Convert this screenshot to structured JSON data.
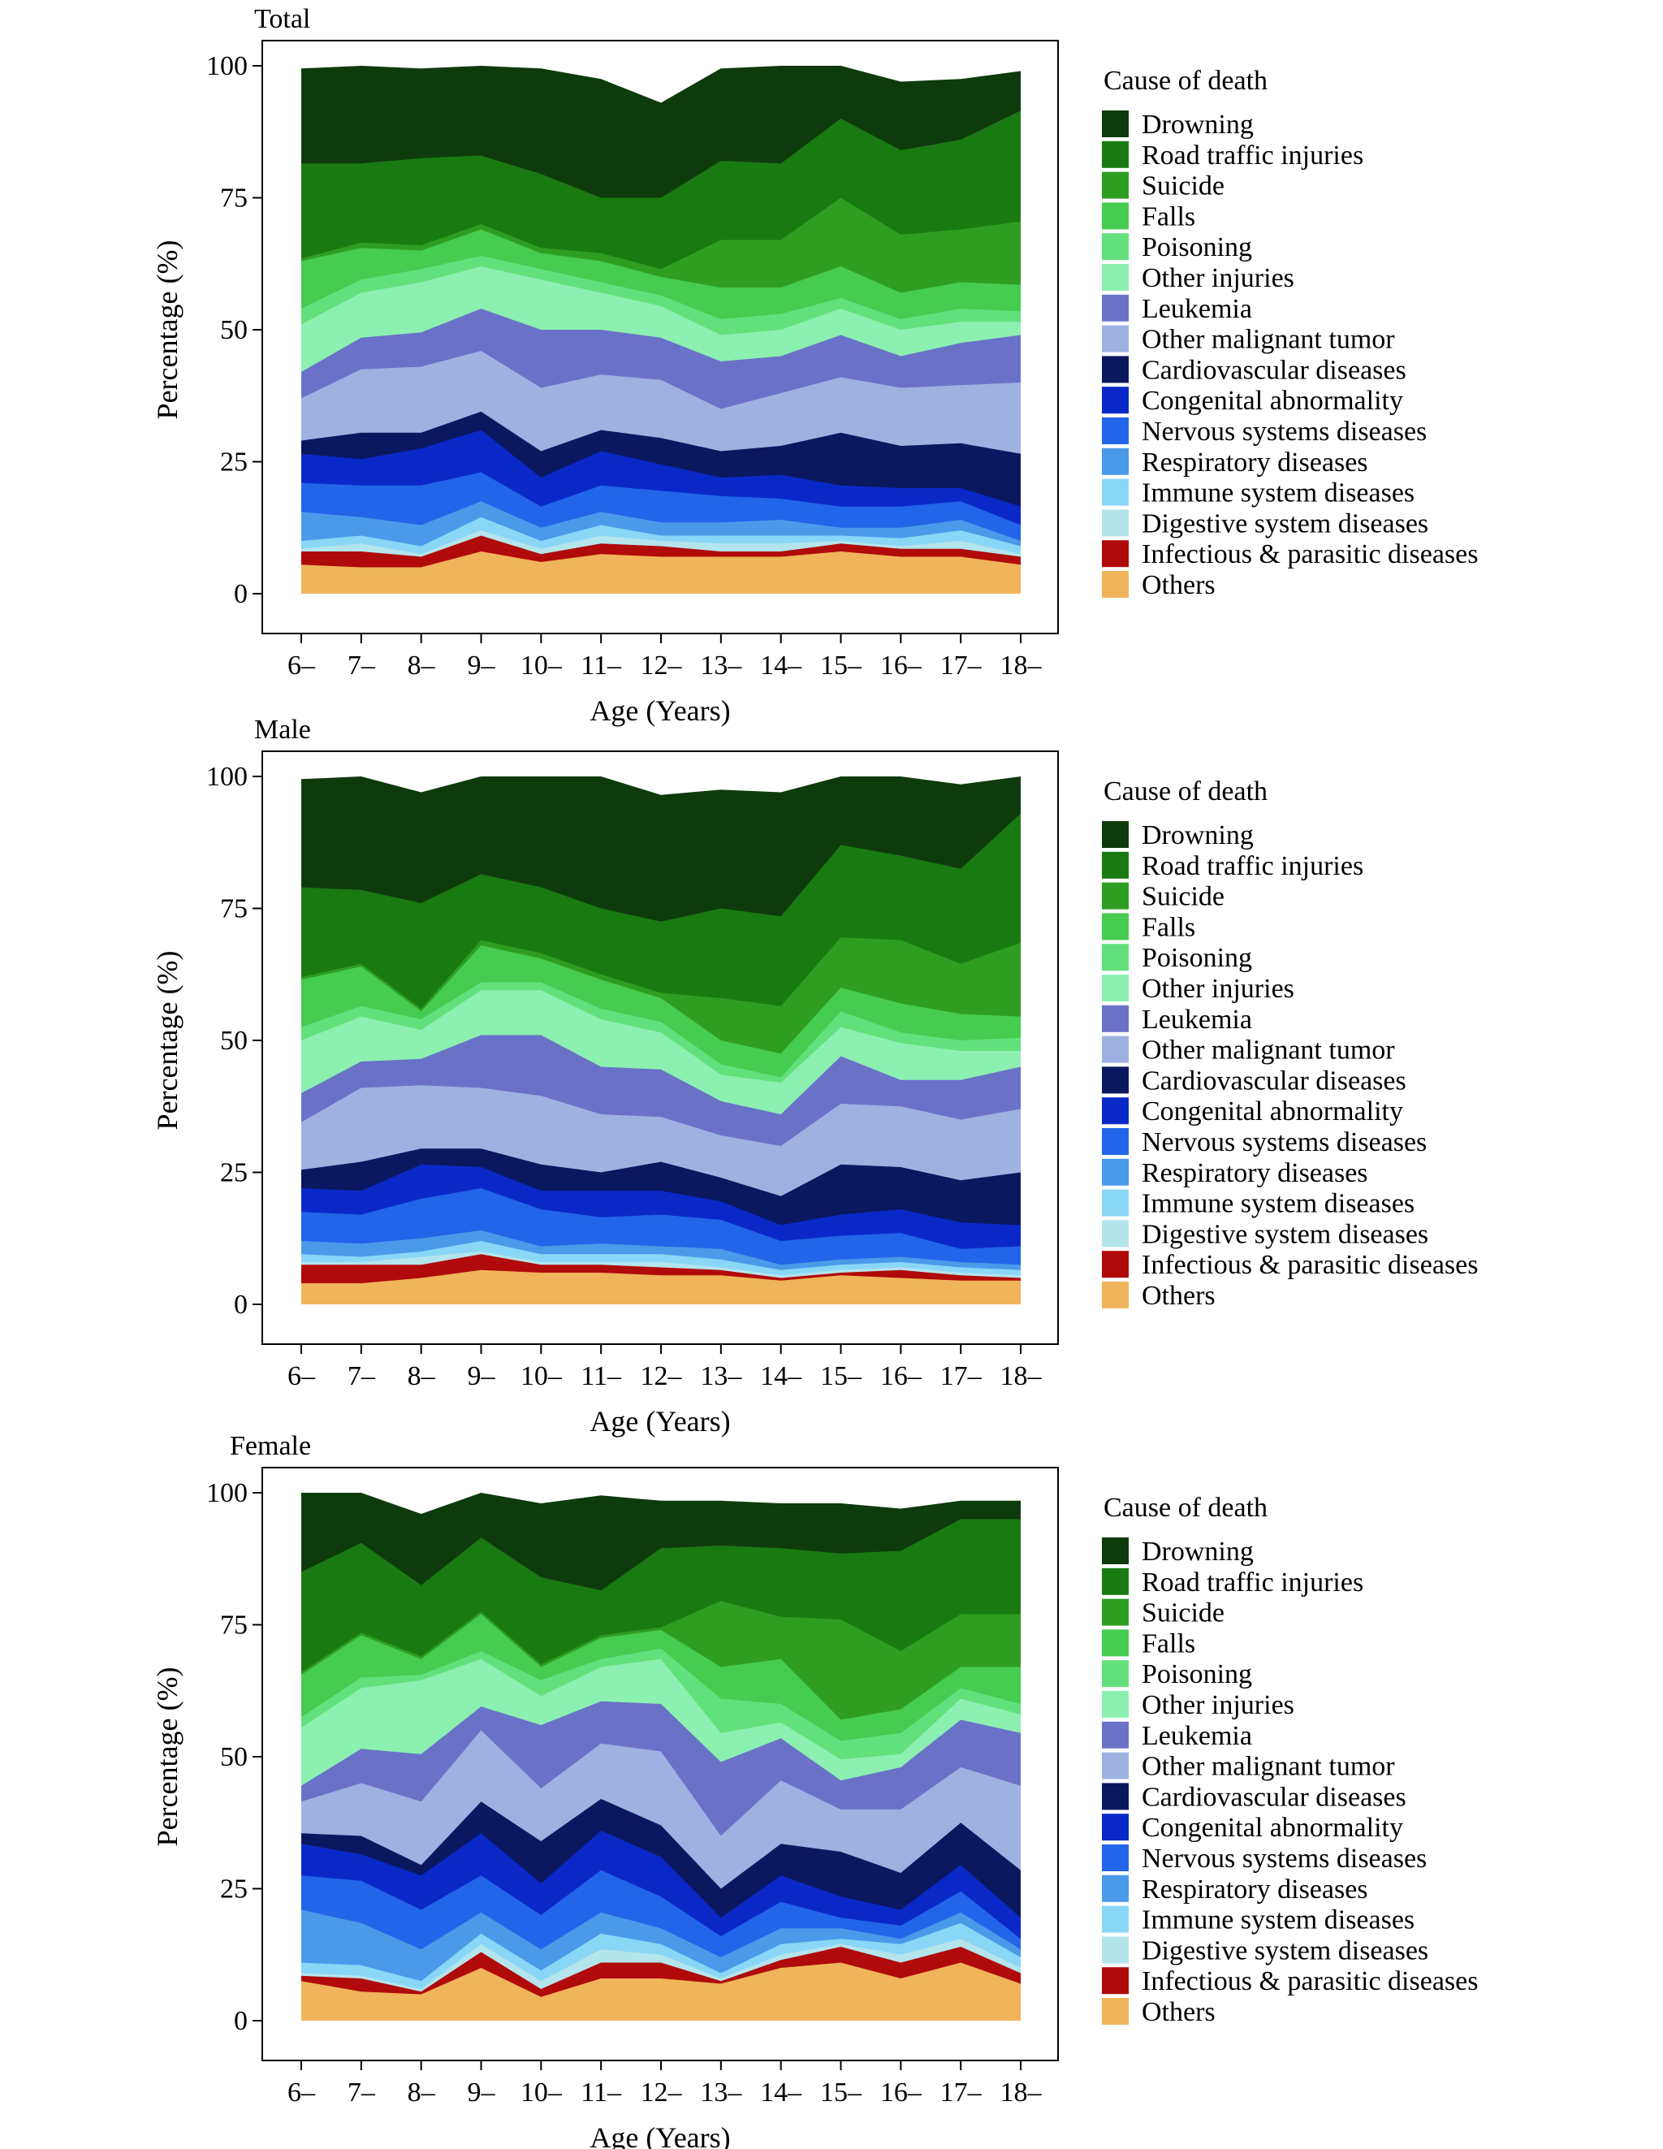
{
  "chart_data": {
    "type": "area",
    "stacked": true,
    "legend_title": "Cause of death",
    "legend_placement": "right",
    "ylabel": "Percentage (%)",
    "xlabel": "Age (Years)",
    "ylim": [
      0,
      100
    ],
    "yticks": [
      0,
      25,
      50,
      75,
      100
    ],
    "categories": [
      "6–",
      "7–",
      "8–",
      "9–",
      "10–",
      "11–",
      "12–",
      "13–",
      "14–",
      "15–",
      "16–",
      "17–",
      "18–"
    ],
    "causes": [
      {
        "name": "Drowning",
        "color": "#0e3b0c"
      },
      {
        "name": "Road traffic injuries",
        "color": "#1a7a12"
      },
      {
        "name": "Suicide",
        "color": "#2e9e22"
      },
      {
        "name": "Falls",
        "color": "#46cc50"
      },
      {
        "name": "Poisoning",
        "color": "#62e07c"
      },
      {
        "name": "Other injuries",
        "color": "#8cf0b0"
      },
      {
        "name": "Leukemia",
        "color": "#6a72c8"
      },
      {
        "name": "Other malignant tumor",
        "color": "#9eb2e2"
      },
      {
        "name": "Cardiovascular diseases",
        "color": "#0a1860"
      },
      {
        "name": "Congenital abnormality",
        "color": "#0a28c8"
      },
      {
        "name": "Nervous systems diseases",
        "color": "#2265e8"
      },
      {
        "name": "Respiratory diseases",
        "color": "#4a9aea"
      },
      {
        "name": "Immune system diseases",
        "color": "#8ad6f6"
      },
      {
        "name": "Digestive system diseases",
        "color": "#b4e4ec"
      },
      {
        "name": "Infectious & parasitic diseases",
        "color": "#b00a0a"
      },
      {
        "name": "Others",
        "color": "#f0b45a"
      }
    ],
    "panels": [
      {
        "title": "Total",
        "series": [
          {
            "name": "Drowning",
            "values": [
              18,
              20,
              17,
              19,
              20,
              22.5,
              18,
              17.5,
              18.5,
              13,
              13,
              11.5,
              7.5
            ]
          },
          {
            "name": "Road traffic injuries",
            "values": [
              18,
              15,
              16.5,
              13,
              14,
              10.5,
              13.5,
              15,
              14.5,
              15,
              16,
              17,
              21
            ]
          },
          {
            "name": "Suicide",
            "values": [
              0.5,
              1,
              1,
              1,
              1,
              1.5,
              1.5,
              9,
              9,
              13,
              11,
              10,
              12
            ]
          },
          {
            "name": "Falls",
            "values": [
              9,
              6,
              3.5,
              5,
              3,
              4,
              3.5,
              6,
              5,
              6,
              5,
              5,
              5
            ]
          },
          {
            "name": "Poisoning",
            "values": [
              3,
              2.5,
              2.5,
              2,
              2,
              2,
              2,
              3,
              3,
              2,
              2,
              2.5,
              2
            ]
          },
          {
            "name": "Other injuries",
            "values": [
              9,
              8.5,
              9.5,
              8,
              9.5,
              7,
              6,
              5,
              5,
              5,
              5,
              4,
              2.5
            ]
          },
          {
            "name": "Leukemia",
            "values": [
              5,
              6,
              6.5,
              8,
              11,
              8.5,
              8,
              9,
              7,
              8,
              6,
              8,
              9
            ]
          },
          {
            "name": "Other malignant tumor",
            "values": [
              8,
              12,
              12.5,
              11.5,
              12,
              10.5,
              11,
              8,
              10,
              10.5,
              11,
              11,
              13.5
            ]
          },
          {
            "name": "Cardiovascular diseases",
            "values": [
              2.5,
              5,
              3,
              3.5,
              5,
              4,
              5,
              5,
              5.5,
              10,
              8,
              8.5,
              10
            ]
          },
          {
            "name": "Congenital abnormality",
            "values": [
              5.5,
              5,
              7,
              8,
              5.5,
              6.5,
              5,
              3.5,
              4.5,
              4,
              3.5,
              2.5,
              3.5
            ]
          },
          {
            "name": "Nervous systems diseases",
            "values": [
              5.5,
              6,
              7.5,
              5.5,
              4,
              5,
              6,
              5,
              4,
              4,
              4,
              3.5,
              3
            ]
          },
          {
            "name": "Respiratory diseases",
            "values": [
              5.5,
              3.5,
              4,
              3,
              2.5,
              2.5,
              2.5,
              2.5,
              3,
              1.5,
              2,
              2,
              1
            ]
          },
          {
            "name": "Immune system diseases",
            "values": [
              1.5,
              1.5,
              1.5,
              2.5,
              1.5,
              2,
              1,
              1.5,
              1.5,
              1,
              1.5,
              2,
              1.5
            ]
          },
          {
            "name": "Digestive system diseases",
            "values": [
              0.5,
              1.5,
              0.5,
              1,
              1,
              1.5,
              1,
              1.5,
              1.5,
              0.5,
              0.5,
              1.5,
              0.5
            ]
          },
          {
            "name": "Infectious & parasitic diseases",
            "values": [
              2.5,
              3,
              2,
              3,
              1.5,
              2,
              2,
              1,
              1,
              1.5,
              1.5,
              1.5,
              1.5
            ]
          },
          {
            "name": "Others",
            "values": [
              5.5,
              5,
              5,
              8,
              6,
              7.5,
              7,
              7,
              7,
              8,
              7,
              7,
              5.5
            ]
          }
        ]
      },
      {
        "title": "Male",
        "series": [
          {
            "name": "Drowning",
            "values": [
              20.5,
              24,
              21,
              24,
              25,
              26.5,
              24,
              22.5,
              23.5,
              15,
              16,
              16,
              10.5
            ]
          },
          {
            "name": "Road traffic injuries",
            "values": [
              17,
              14,
              20,
              12.5,
              12.5,
              12.5,
              13.5,
              17,
              17,
              17.5,
              16,
              18,
              24.5
            ]
          },
          {
            "name": "Suicide",
            "values": [
              0.5,
              0.5,
              0.5,
              1,
              1,
              1,
              1,
              8,
              9,
              9.5,
              12,
              9.5,
              14
            ]
          },
          {
            "name": "Falls",
            "values": [
              9,
              7.5,
              1.5,
              7,
              4.5,
              5.5,
              4.5,
              4.5,
              4.5,
              4.5,
              5.5,
              5,
              4
            ]
          },
          {
            "name": "Poisoning",
            "values": [
              2.5,
              2,
              2,
              1.5,
              1.5,
              2,
              2,
              2,
              1,
              3,
              2,
              2,
              2.5
            ]
          },
          {
            "name": "Other injuries",
            "values": [
              10,
              8.5,
              5.5,
              8.5,
              8.5,
              9,
              7,
              5,
              6,
              5.5,
              7,
              5.5,
              3
            ]
          },
          {
            "name": "Leukemia",
            "values": [
              5.5,
              5,
              5,
              10,
              11.5,
              9,
              9,
              6.5,
              6,
              9,
              5,
              7.5,
              8
            ]
          },
          {
            "name": "Other malignant tumor",
            "values": [
              9,
              14,
              12,
              11.5,
              13,
              11,
              8.5,
              8,
              9.5,
              11.5,
              11.5,
              11.5,
              12
            ]
          },
          {
            "name": "Cardiovascular diseases",
            "values": [
              3.5,
              5.5,
              3,
              3.5,
              5,
              3.5,
              5.5,
              4.5,
              5.5,
              9.5,
              8,
              8,
              10
            ]
          },
          {
            "name": "Congenital abnormality",
            "values": [
              4.5,
              4.5,
              6.5,
              4,
              3.5,
              5,
              4.5,
              3.5,
              3,
              4,
              4.5,
              5,
              4
            ]
          },
          {
            "name": "Nervous systems diseases",
            "values": [
              5.5,
              5.5,
              7.5,
              8,
              7,
              5,
              6,
              5.5,
              4.5,
              4.5,
              4.5,
              2.5,
              3.5
            ]
          },
          {
            "name": "Respiratory diseases",
            "values": [
              2.5,
              2.5,
              2.5,
              2,
              1.5,
              2,
              1.5,
              2,
              1,
              1,
              1,
              1,
              1
            ]
          },
          {
            "name": "Immune system diseases",
            "values": [
              1.5,
              1,
              1,
              2,
              1.5,
              1.5,
              1.5,
              1.5,
              1,
              1,
              1,
              1,
              1
            ]
          },
          {
            "name": "Digestive system diseases",
            "values": [
              0.5,
              0.5,
              1.5,
              0.5,
              0.5,
              0.5,
              1,
              0.5,
              0.5,
              0.5,
              0.5,
              0.5,
              0.5
            ]
          },
          {
            "name": "Infectious & parasitic diseases",
            "values": [
              3.5,
              3.5,
              2.5,
              3,
              1.5,
              1.5,
              1.5,
              1,
              0.5,
              0.5,
              1.5,
              1,
              0.5
            ]
          },
          {
            "name": "Others",
            "values": [
              4,
              4,
              5,
              6.5,
              6,
              6,
              5.5,
              5.5,
              4.5,
              5.5,
              5,
              4.5,
              4.5
            ]
          }
        ]
      },
      {
        "title": "Female",
        "series": [
          {
            "name": "Drowning",
            "values": [
              15,
              15,
              13.5,
              12,
              14,
              18,
              9,
              8.5,
              8.5,
              9.5,
              8,
              3.5,
              3.5
            ]
          },
          {
            "name": "Road traffic injuries",
            "values": [
              19,
              17,
              13.5,
              14,
              16.5,
              8.5,
              15,
              10.5,
              13,
              12.5,
              19,
              18,
              18
            ]
          },
          {
            "name": "Suicide",
            "values": [
              0.5,
              0.5,
              0.5,
              0.5,
              0.5,
              0.5,
              0.5,
              12.5,
              8,
              19,
              11,
              10,
              10
            ]
          },
          {
            "name": "Falls",
            "values": [
              8,
              8,
              3,
              7,
              2.5,
              4,
              3.5,
              6,
              8.5,
              4,
              4.5,
              4,
              7
            ]
          },
          {
            "name": "Poisoning",
            "values": [
              2,
              2,
              1,
              1.5,
              3,
              1.5,
              2,
              6.5,
              3.5,
              3.5,
              4,
              2,
              2
            ]
          },
          {
            "name": "Other injuries",
            "values": [
              11,
              11.5,
              14,
              9,
              5.5,
              6.5,
              8.5,
              5.5,
              3,
              4,
              2.5,
              4,
              3.5
            ]
          },
          {
            "name": "Leukemia",
            "values": [
              3,
              6.5,
              9,
              4.5,
              12,
              8,
              9,
              14,
              8,
              5.5,
              8,
              9,
              10
            ]
          },
          {
            "name": "Other malignant tumor",
            "values": [
              6,
              10,
              12,
              13.5,
              10,
              10.5,
              14,
              10,
              12,
              8,
              12,
              10.5,
              16
            ]
          },
          {
            "name": "Cardiovascular diseases",
            "values": [
              2,
              3.5,
              2,
              6,
              8,
              6,
              6,
              5.5,
              6,
              8.5,
              7,
              8,
              9
            ]
          },
          {
            "name": "Congenital abnormality",
            "values": [
              6,
              5,
              6.5,
              8,
              6,
              7.5,
              7.5,
              3.5,
              5,
              4,
              3,
              5,
              4
            ]
          },
          {
            "name": "Nervous systems diseases",
            "values": [
              6.5,
              8,
              7.5,
              7,
              6.5,
              8,
              6,
              4,
              5,
              2,
              2.5,
              4,
              2
            ]
          },
          {
            "name": "Respiratory diseases",
            "values": [
              10,
              8,
              6,
              4,
              4,
              4,
              3,
              3,
              3,
              2,
              1,
              2,
              1.5
            ]
          },
          {
            "name": "Immune system diseases",
            "values": [
              2,
              2,
              1.5,
              2,
              2,
              3,
              2,
              1,
              2,
              1,
              2,
              3,
              2
            ]
          },
          {
            "name": "Digestive system diseases",
            "values": [
              0.5,
              0.5,
              0.5,
              1.5,
              1.5,
              2.5,
              1.5,
              0.5,
              1,
              0.5,
              1.5,
              1.5,
              1
            ]
          },
          {
            "name": "Infectious & parasitic diseases",
            "values": [
              1,
              2.5,
              0.5,
              3,
              1.5,
              3,
              3,
              0.5,
              1.5,
              3,
              3,
              3,
              2
            ]
          },
          {
            "name": "Others",
            "values": [
              7.5,
              5.5,
              5,
              10,
              4.5,
              8,
              8,
              7,
              10,
              11,
              8,
              11,
              7
            ]
          }
        ]
      }
    ]
  }
}
